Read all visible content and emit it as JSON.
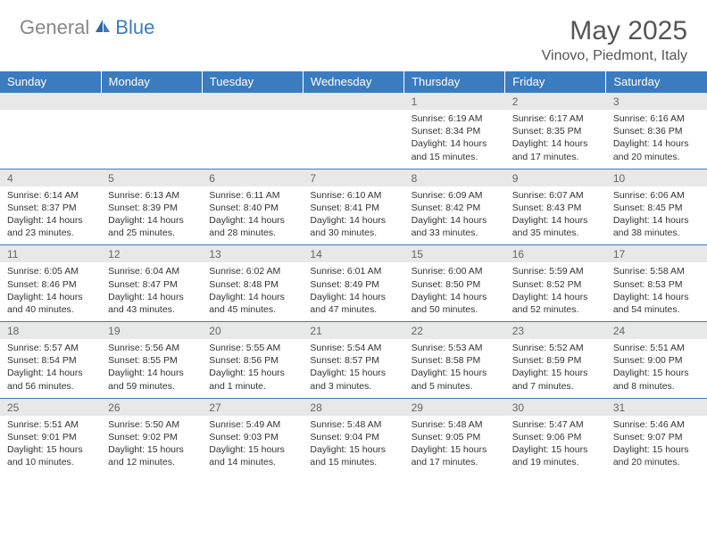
{
  "brand": {
    "part1": "General",
    "part2": "Blue"
  },
  "title": "May 2025",
  "location": "Vinovo, Piedmont, Italy",
  "colors": {
    "header_bg": "#3b7bbf",
    "header_text": "#ffffff",
    "date_bg": "#e8e8e8",
    "date_text": "#666666",
    "body_text": "#333333",
    "brand_gray": "#888888",
    "brand_blue": "#3b7bbf",
    "row_border": "#3b7bbf"
  },
  "typography": {
    "title_fontsize": 30,
    "location_fontsize": 16,
    "dayhead_fontsize": 13,
    "date_fontsize": 12,
    "cell_fontsize": 10.5
  },
  "dayNames": [
    "Sunday",
    "Monday",
    "Tuesday",
    "Wednesday",
    "Thursday",
    "Friday",
    "Saturday"
  ],
  "weeks": [
    {
      "dates": [
        "",
        "",
        "",
        "",
        "1",
        "2",
        "3"
      ],
      "cells": [
        null,
        null,
        null,
        null,
        {
          "sunrise": "Sunrise: 6:19 AM",
          "sunset": "Sunset: 8:34 PM",
          "day1": "Daylight: 14 hours",
          "day2": "and 15 minutes."
        },
        {
          "sunrise": "Sunrise: 6:17 AM",
          "sunset": "Sunset: 8:35 PM",
          "day1": "Daylight: 14 hours",
          "day2": "and 17 minutes."
        },
        {
          "sunrise": "Sunrise: 6:16 AM",
          "sunset": "Sunset: 8:36 PM",
          "day1": "Daylight: 14 hours",
          "day2": "and 20 minutes."
        }
      ]
    },
    {
      "dates": [
        "4",
        "5",
        "6",
        "7",
        "8",
        "9",
        "10"
      ],
      "cells": [
        {
          "sunrise": "Sunrise: 6:14 AM",
          "sunset": "Sunset: 8:37 PM",
          "day1": "Daylight: 14 hours",
          "day2": "and 23 minutes."
        },
        {
          "sunrise": "Sunrise: 6:13 AM",
          "sunset": "Sunset: 8:39 PM",
          "day1": "Daylight: 14 hours",
          "day2": "and 25 minutes."
        },
        {
          "sunrise": "Sunrise: 6:11 AM",
          "sunset": "Sunset: 8:40 PM",
          "day1": "Daylight: 14 hours",
          "day2": "and 28 minutes."
        },
        {
          "sunrise": "Sunrise: 6:10 AM",
          "sunset": "Sunset: 8:41 PM",
          "day1": "Daylight: 14 hours",
          "day2": "and 30 minutes."
        },
        {
          "sunrise": "Sunrise: 6:09 AM",
          "sunset": "Sunset: 8:42 PM",
          "day1": "Daylight: 14 hours",
          "day2": "and 33 minutes."
        },
        {
          "sunrise": "Sunrise: 6:07 AM",
          "sunset": "Sunset: 8:43 PM",
          "day1": "Daylight: 14 hours",
          "day2": "and 35 minutes."
        },
        {
          "sunrise": "Sunrise: 6:06 AM",
          "sunset": "Sunset: 8:45 PM",
          "day1": "Daylight: 14 hours",
          "day2": "and 38 minutes."
        }
      ]
    },
    {
      "dates": [
        "11",
        "12",
        "13",
        "14",
        "15",
        "16",
        "17"
      ],
      "cells": [
        {
          "sunrise": "Sunrise: 6:05 AM",
          "sunset": "Sunset: 8:46 PM",
          "day1": "Daylight: 14 hours",
          "day2": "and 40 minutes."
        },
        {
          "sunrise": "Sunrise: 6:04 AM",
          "sunset": "Sunset: 8:47 PM",
          "day1": "Daylight: 14 hours",
          "day2": "and 43 minutes."
        },
        {
          "sunrise": "Sunrise: 6:02 AM",
          "sunset": "Sunset: 8:48 PM",
          "day1": "Daylight: 14 hours",
          "day2": "and 45 minutes."
        },
        {
          "sunrise": "Sunrise: 6:01 AM",
          "sunset": "Sunset: 8:49 PM",
          "day1": "Daylight: 14 hours",
          "day2": "and 47 minutes."
        },
        {
          "sunrise": "Sunrise: 6:00 AM",
          "sunset": "Sunset: 8:50 PM",
          "day1": "Daylight: 14 hours",
          "day2": "and 50 minutes."
        },
        {
          "sunrise": "Sunrise: 5:59 AM",
          "sunset": "Sunset: 8:52 PM",
          "day1": "Daylight: 14 hours",
          "day2": "and 52 minutes."
        },
        {
          "sunrise": "Sunrise: 5:58 AM",
          "sunset": "Sunset: 8:53 PM",
          "day1": "Daylight: 14 hours",
          "day2": "and 54 minutes."
        }
      ]
    },
    {
      "dates": [
        "18",
        "19",
        "20",
        "21",
        "22",
        "23",
        "24"
      ],
      "cells": [
        {
          "sunrise": "Sunrise: 5:57 AM",
          "sunset": "Sunset: 8:54 PM",
          "day1": "Daylight: 14 hours",
          "day2": "and 56 minutes."
        },
        {
          "sunrise": "Sunrise: 5:56 AM",
          "sunset": "Sunset: 8:55 PM",
          "day1": "Daylight: 14 hours",
          "day2": "and 59 minutes."
        },
        {
          "sunrise": "Sunrise: 5:55 AM",
          "sunset": "Sunset: 8:56 PM",
          "day1": "Daylight: 15 hours",
          "day2": "and 1 minute."
        },
        {
          "sunrise": "Sunrise: 5:54 AM",
          "sunset": "Sunset: 8:57 PM",
          "day1": "Daylight: 15 hours",
          "day2": "and 3 minutes."
        },
        {
          "sunrise": "Sunrise: 5:53 AM",
          "sunset": "Sunset: 8:58 PM",
          "day1": "Daylight: 15 hours",
          "day2": "and 5 minutes."
        },
        {
          "sunrise": "Sunrise: 5:52 AM",
          "sunset": "Sunset: 8:59 PM",
          "day1": "Daylight: 15 hours",
          "day2": "and 7 minutes."
        },
        {
          "sunrise": "Sunrise: 5:51 AM",
          "sunset": "Sunset: 9:00 PM",
          "day1": "Daylight: 15 hours",
          "day2": "and 8 minutes."
        }
      ]
    },
    {
      "dates": [
        "25",
        "26",
        "27",
        "28",
        "29",
        "30",
        "31"
      ],
      "cells": [
        {
          "sunrise": "Sunrise: 5:51 AM",
          "sunset": "Sunset: 9:01 PM",
          "day1": "Daylight: 15 hours",
          "day2": "and 10 minutes."
        },
        {
          "sunrise": "Sunrise: 5:50 AM",
          "sunset": "Sunset: 9:02 PM",
          "day1": "Daylight: 15 hours",
          "day2": "and 12 minutes."
        },
        {
          "sunrise": "Sunrise: 5:49 AM",
          "sunset": "Sunset: 9:03 PM",
          "day1": "Daylight: 15 hours",
          "day2": "and 14 minutes."
        },
        {
          "sunrise": "Sunrise: 5:48 AM",
          "sunset": "Sunset: 9:04 PM",
          "day1": "Daylight: 15 hours",
          "day2": "and 15 minutes."
        },
        {
          "sunrise": "Sunrise: 5:48 AM",
          "sunset": "Sunset: 9:05 PM",
          "day1": "Daylight: 15 hours",
          "day2": "and 17 minutes."
        },
        {
          "sunrise": "Sunrise: 5:47 AM",
          "sunset": "Sunset: 9:06 PM",
          "day1": "Daylight: 15 hours",
          "day2": "and 19 minutes."
        },
        {
          "sunrise": "Sunrise: 5:46 AM",
          "sunset": "Sunset: 9:07 PM",
          "day1": "Daylight: 15 hours",
          "day2": "and 20 minutes."
        }
      ]
    }
  ]
}
